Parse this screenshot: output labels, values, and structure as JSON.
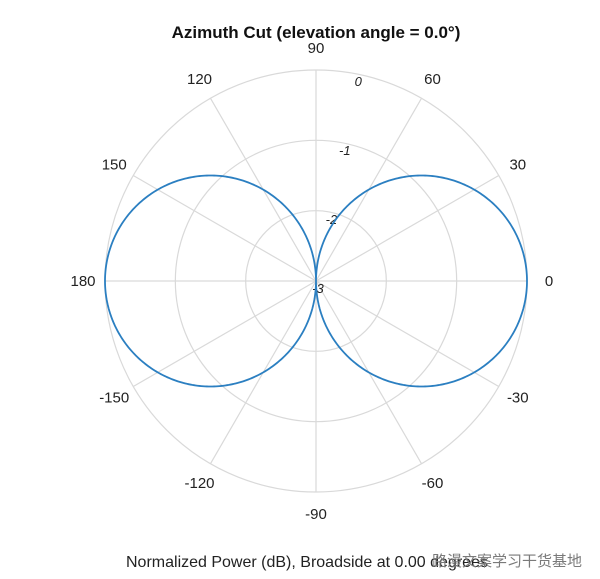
{
  "chart_data": {
    "type": "line",
    "subtype": "polar",
    "title": "Azimuth Cut (elevation angle = 0.0°)",
    "caption": "Normalized Power (dB), Broadside at 0.00 degrees",
    "angular_tick_labels": [
      "90",
      "60",
      "30",
      "0",
      "-30",
      "-60",
      "-90",
      "-120",
      "-150",
      "180",
      "150",
      "120"
    ],
    "angular_ticks_deg": [
      90,
      60,
      30,
      0,
      -30,
      -60,
      -90,
      -120,
      -150,
      180,
      150,
      120
    ],
    "radial_ticks": [
      0,
      -1,
      -2,
      -3
    ],
    "radial_tick_labels": [
      "0",
      "-1",
      "-2",
      "-3"
    ],
    "rlim": [
      -3,
      0
    ],
    "grid": true,
    "series": [
      {
        "pattern": "dipole figure-eight (two lobes)",
        "theta_deg": [
          0,
          15,
          30,
          45,
          60,
          75,
          90,
          105,
          120,
          135,
          150,
          165,
          180,
          195,
          210,
          225,
          240,
          255,
          270,
          285,
          300,
          315,
          330,
          345,
          360
        ],
        "r_db": [
          0,
          -0.15,
          -0.62,
          -1.5,
          -2.9,
          -3,
          -3,
          -3,
          -2.9,
          -1.5,
          -0.62,
          -0.15,
          0,
          -0.15,
          -0.62,
          -1.5,
          -2.9,
          -3,
          -3,
          -3,
          -2.9,
          -1.5,
          -0.62,
          -0.15,
          0
        ],
        "color": "#2b7fc1"
      }
    ]
  },
  "colors": {
    "grid": "#d9d9d9",
    "series": "#2b7fc1",
    "text": "#222222"
  }
}
